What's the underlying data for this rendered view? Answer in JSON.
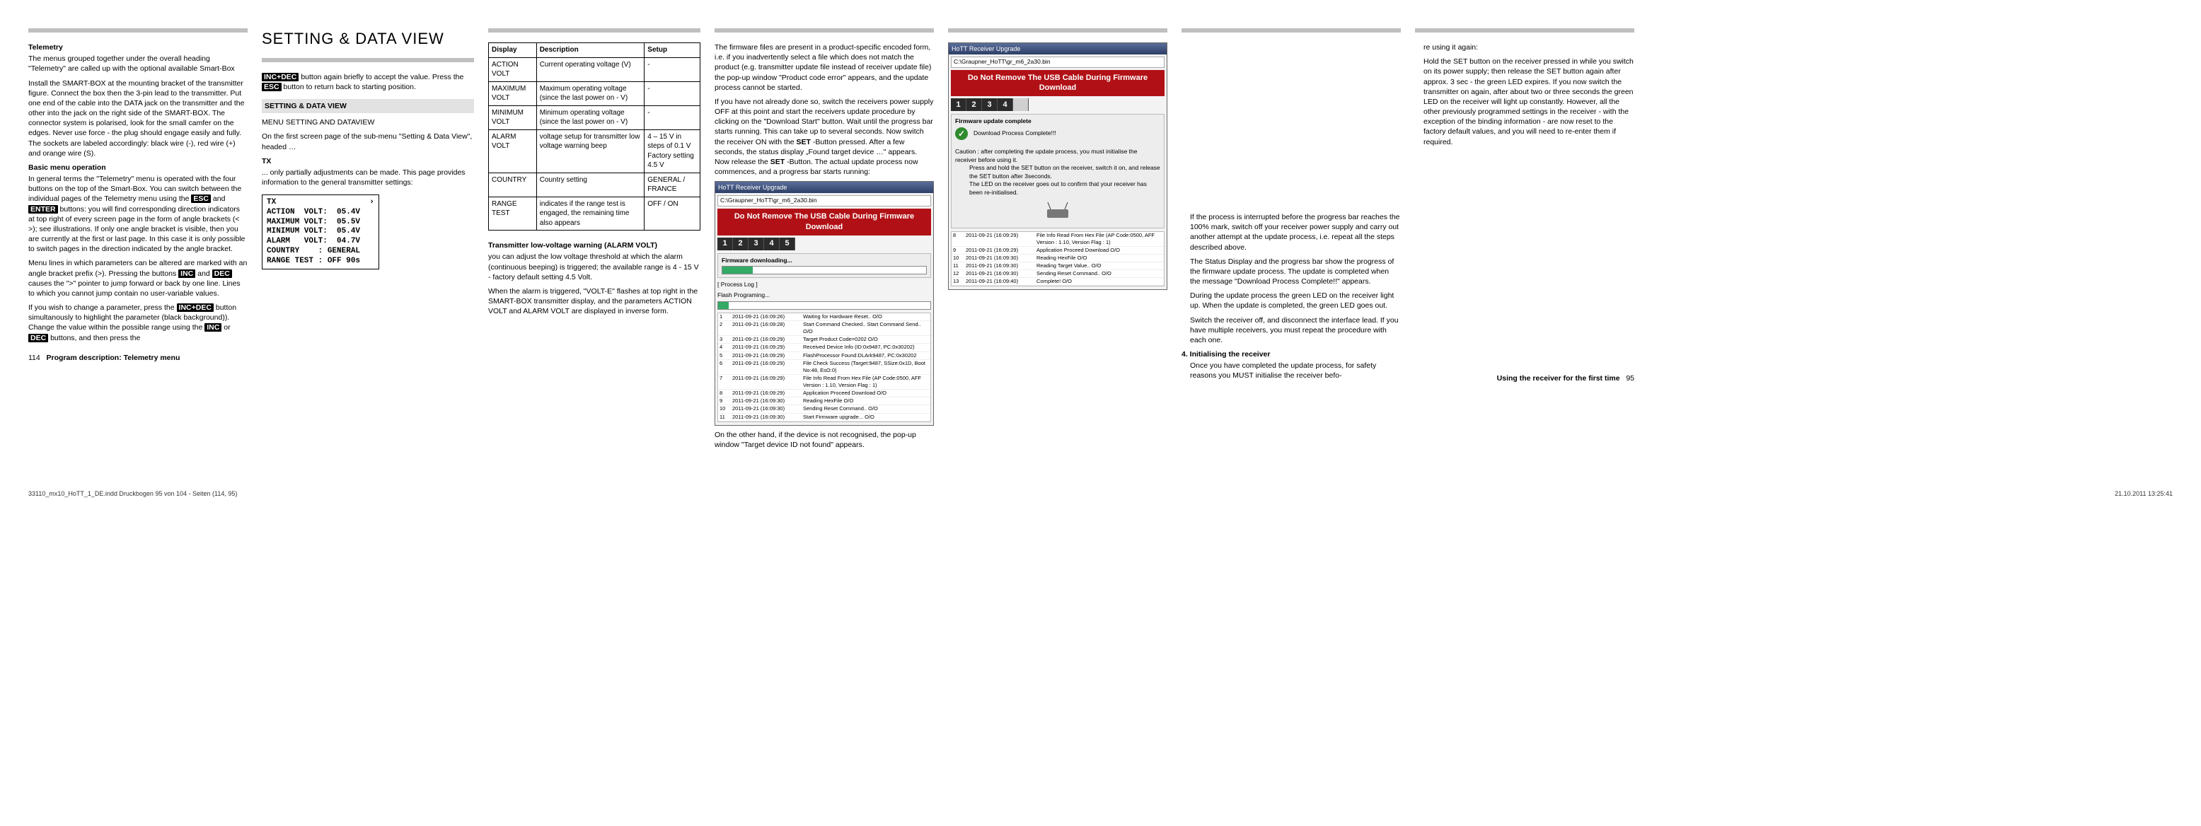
{
  "title": "SETTING & DATA VIEW",
  "col1": {
    "telemetry_head": "Telemetry",
    "telemetry_p1": "The menus grouped together under the overall heading \"Telemetry\" are called up with the optional available Smart-Box",
    "telemetry_p2": "Install the SMART-BOX at the mounting bracket of the transmitter figure. Connect the box then the 3-pin lead to the transmitter. Put one end of the cable into the DATA jack on the transmitter and the other into the jack on the right side of the SMART-BOX. The connector system is polarised, look for the small camfer on the edges. Never use force - the plug should engage easily and fully. The sockets are labeled accordingly: black wire (-), red wire (+) and orange wire (S).",
    "basic_head": "Basic menu operation",
    "basic_p1a": "In general terms the \"Telemetry\" menu is operated with the four buttons on the top of the Smart-Box. You can switch between the individual pages of the Telemetry menu using the ",
    "esc": "ESC",
    "enter": "ENTER",
    "basic_p1b": " and ",
    "basic_p1c": " buttons: you will find corresponding direction indicators at top right of every screen page in the form of angle brackets (< >); see illustrations. If only one angle bracket is visible, then you are currently at the first or last page. In this case it is only possible to switch pages in the direction indicated by the angle bracket.",
    "basic_p2a": "Menu lines in which parameters can be altered are marked with an angle bracket prefix (>). Pressing the buttons ",
    "inc": "INC",
    "dec": "DEC",
    "basic_p2b": " and ",
    "basic_p2c": " causes the \">\" pointer to jump forward or back by one line. Lines to which you cannot jump contain no user-variable values.",
    "basic_p3a": "If you wish to change a parameter, press the ",
    "incdec": "INC+DEC",
    "basic_p3b": " button simultanously to highlight the parameter (black background)). Change the value within the possible range using the ",
    "basic_p3c": " or ",
    "basic_p3d": " buttons, and then press the",
    "footer": "114    Program description: Telemetry menu"
  },
  "col2": {
    "p1a": " button again briefly to accept the value. Press the ",
    "p1b": " button to return back to starting position.",
    "bar": "SETTING & DATA VIEW",
    "menu_head": "MENU SETTING AND DATAVIEW",
    "p2": "On the first screen page of the sub-menu \"Setting & Data View\", headed …",
    "tx_head": "TX",
    "p3": "... only partially adjustments can be made. This page provides information to the general transmitter settings:",
    "lcd": "TX                    ›\nACTION  VOLT:  05.4V\nMAXIMUM VOLT:  05.5V\nMINIMUM VOLT:  05.4V\nALARM   VOLT:  04.7V\nCOUNTRY    : GENERAL\nRANGE TEST : OFF 90s"
  },
  "table": {
    "headers": [
      "Display",
      "Description",
      "Setup"
    ],
    "rows": [
      [
        "ACTION VOLT",
        "Current operating voltage (V)",
        "-"
      ],
      [
        "MAXIMUM VOLT",
        "Maximum operating voltage (since the last power on - V)",
        "-"
      ],
      [
        "MINIMUM VOLT",
        "Minimum operating voltage (since the last power on - V)",
        "-"
      ],
      [
        "ALARM VOLT",
        "voltage setup for transmitter low voltage warning beep",
        "4 – 15 V in steps of 0.1 V\nFactory setting 4.5 V"
      ],
      [
        "COUNTRY",
        "Country setting",
        "GENERAL / FRANCE"
      ],
      [
        "RANGE TEST",
        "indicates if the range test is engaged, the remaining time also appears",
        "OFF / ON"
      ]
    ],
    "alarm_head": "Transmitter low-voltage warning (ALARM VOLT)",
    "alarm_p1": "you can adjust the low voltage threshold at which the alarm (continuous beeping) is triggered; the available range is 4 - 15 V - factory default setting 4.5 Volt.",
    "alarm_p2": "When the alarm is triggered, \"VOLT-E\" flashes at top right in the SMART-BOX transmitter display, and the parameters ACTION VOLT and ALARM VOLT are displayed in inverse form."
  },
  "col4": {
    "p1": "The firmware files are present in a product-specific encoded form, i.e. if you inadvertently select a file which does not match the product (e.g. transmitter update file instead of receiver update file) the pop-up window \"Product code error\" appears, and the update process cannot be started.",
    "p2a": "If you have not already done so, switch the receivers power supply OFF at this point and start the receivers update procedure by clicking on the \"Download Start\" button. Wait until the progress bar starts running. This can take up to several seconds. Now switch the receiver ON with the ",
    "set": "SET",
    "p2b": "-Button pressed. After a few seconds, the status display „Found target device …\" appears. Now release the ",
    "p2c": "-Button. The actual update process now commences, and a progress bar starts running:",
    "p3": "On the other hand, if the device is not recognised, the pop-up window \"Target device ID not found\" appears."
  },
  "ss1": {
    "title": "HoTT Receiver Upgrade",
    "path": "C:\\Graupner_HoTT\\gr_m6_2a30.bin",
    "redbar": "Do Not Remove The USB Cable During Firmware Download",
    "steps": [
      "1",
      "2",
      "3",
      "4",
      "5"
    ],
    "fw": "Firmware downloading...",
    "proc": "[ Process Log ]",
    "flash": "Flash Programing...",
    "log": [
      [
        "1",
        "2011-09-21 (16:09:26)",
        "Waiting for Hardware Reset.. O/O"
      ],
      [
        "2",
        "2011-09-21 (16:09:28)",
        "Start Command Checked.. Start Command Send.. O/O"
      ],
      [
        "3",
        "2011-09-21 (16:09:29)",
        "Target Product Code=0202 O/O"
      ],
      [
        "4",
        "2011-09-21 (16:09:29)",
        "Received Device Info (ID:0x9487, PC:0x30202)"
      ],
      [
        "5",
        "2011-09-21 (16:09:29)",
        "FlashProcessor Found:DLArk9487, PC:0x30202"
      ],
      [
        "6",
        "2011-09-21 (16:09:29)",
        "File Check Success (Target:9487, SSize:0x1D, Boot No:48, EsO:0)"
      ],
      [
        "7",
        "2011-09-21 (16:09:29)",
        "File Info Read From Hex File (AP Code:0500, AFF Version : 1.10, Version Flag : 1)"
      ],
      [
        "8",
        "2011-09-21 (16:09:29)",
        "Application Proceed Download O/O"
      ],
      [
        "9",
        "2011-09-21 (16:09:30)",
        "Reading HexFile O/O"
      ],
      [
        "10",
        "2011-09-21 (16:09:30)",
        "Sending Reset Command.. O/O"
      ],
      [
        "11",
        "2011-09-21 (16:09:30)",
        "Start Firmware upgrade... O/O"
      ]
    ]
  },
  "ss2": {
    "title": "HoTT Receiver Upgrade",
    "path": "C:\\Graupner_HoTT\\gr_m6_2a30.bin",
    "redbar": "Do Not Remove The USB Cable During Firmware Download",
    "steps": [
      "1",
      "2",
      "3",
      "4"
    ],
    "complete_head": "Firmware update complete",
    "dl_ok": "Download Process Complete!!!",
    "caution1": "Caution : after completing the update process, you must initialise the receiver before using it.",
    "caution2": "Press and hold the SET button on the receiver, switch it on, and release the SET button after 3seconds.",
    "caution3": "The LED on the receiver goes out to confirm that your receiver has been re-initialised.",
    "log": [
      [
        "8",
        "2011-09-21 (16:09:29)",
        "File Info Read From Hex File (AP Code:0500, AFF Version : 1.10, Version Flag : 1)"
      ],
      [
        "9",
        "2011-09-21 (16:09:29)",
        "Application Proceed Download O/O"
      ],
      [
        "10",
        "2011-09-21 (16:09:30)",
        "Reading HexFile O/O"
      ],
      [
        "11",
        "2011-09-21 (16:09:30)",
        "Reading Target Value.. O/O"
      ],
      [
        "12",
        "2011-09-21 (16:09:30)",
        "Sending Reset Command.. O/O"
      ],
      [
        "13",
        "2011-09-21 (16:09:40)",
        "Complete! O/O"
      ]
    ]
  },
  "col6": {
    "p1": "If the process is interrupted before the progress bar reaches the 100% mark, switch off your receiver power supply and carry out another attempt at the update process, i.e. repeat all the steps described above.",
    "p2": "The Status Display and the progress bar show the progress of the firmware update process. The update is completed when the message \"Download Process Complete!!\" appears.",
    "p3": "During the update process the green LED on the receiver light up. When the update is completed, the green LED goes out.",
    "p4": "Switch the receiver off, and disconnect the interface lead. If you have multiple receivers, you must repeat the procedure with each one.",
    "init_head": "4. Initialising the receiver",
    "init_p1": "Once you have completed the update process, for safety reasons you MUST initialise the receiver befo-"
  },
  "col7": {
    "p0": "re using it again:",
    "p1": "Hold the SET button on the receiver pressed in while you switch on its power supply; then release the SET button again after approx. 3 sec - the green LED expires. If you now switch the transmitter on again, after about two or three seconds the green LED on the receiver will light up constantly.  However, all the other previously programmed settings in the receiver - with the exception of the binding information - are now reset to the factory default values, and you will need to re-enter them if required.",
    "footer": "Using the receiver for the first time    95"
  },
  "meta": {
    "left": "33110_mx10_HoTT_1_DE.indd   Druckbogen 95 von 104 - Seiten (114, 95)",
    "right": "21.10.2011   13:25:41"
  }
}
